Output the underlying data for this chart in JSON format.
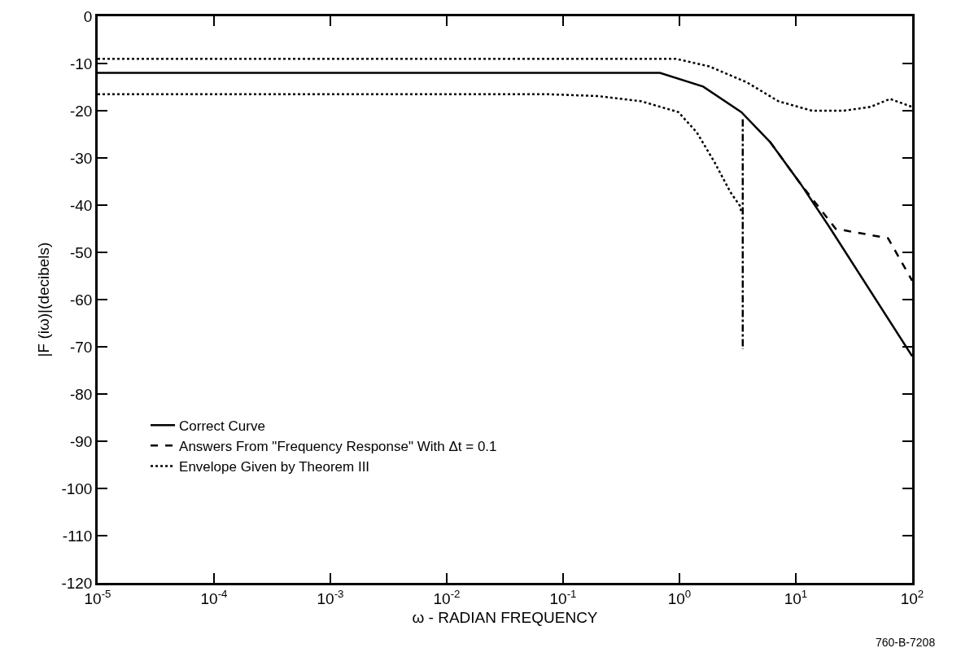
{
  "chart_data": {
    "type": "line",
    "xlabel": "ω - RADIAN FREQUENCY",
    "ylabel": "|F (iω)|(decibels)",
    "log": "x",
    "grid": false,
    "legend": "bottom left",
    "marker": "none",
    "xlim": [
      1e-05,
      100
    ],
    "xticks": [
      {
        "value": 1e-05,
        "label": "10$^{-5}$"
      },
      {
        "value": 0.0001,
        "label": "10$^{-4}$"
      },
      {
        "value": 0.001,
        "label": "10$^{-3}$"
      },
      {
        "value": 0.01,
        "label": "10$^{-2}$"
      },
      {
        "value": 0.1,
        "label": "10$^{-1}$"
      },
      {
        "value": 1,
        "label": "10$^{0}$"
      },
      {
        "value": 10,
        "label": "10$^{1}$"
      },
      {
        "value": 100,
        "label": "10$^{2}$"
      }
    ],
    "ylim": [
      -120,
      0
    ],
    "yticks": [
      0,
      -10,
      -20,
      -30,
      -40,
      -50,
      -60,
      -70,
      -80,
      -90,
      -100,
      -110,
      -120
    ],
    "annotations": [
      "760-B-7208"
    ],
    "series": [
      {
        "name": "Correct Curve",
        "color": "#000000",
        "line_style": "solid",
        "x": [
          1e-05,
          0.68,
          1.6,
          3.4,
          6.0,
          11,
          19.5,
          100
        ],
        "values": [
          -12,
          -12,
          -14.9,
          -20.3,
          -26.6,
          -35.5,
          -44.7,
          -72
        ]
      },
      {
        "name": "Answers From \"Frequency Response\" With Δt = 0.1",
        "color": "#000000",
        "line_style": "dashed",
        "x": [
          6.0,
          11,
          22,
          62,
          100
        ],
        "values": [
          -26.6,
          -35.5,
          -45,
          -47,
          -56
        ]
      },
      {
        "name": "Envelope Given by Theorem III",
        "color": "#000000",
        "line_style": "dotted",
        "x": [
          1e-05,
          0.93,
          1.8,
          3.8,
          7.1,
          13.8,
          25.7,
          43.7,
          64.6,
          100
        ],
        "values": [
          -9,
          -9,
          -10.6,
          -14,
          -18,
          -20,
          -20,
          -19.2,
          -17.5,
          -19.2
        ]
      },
      {
        "color": "#000000",
        "line_style": "dotted",
        "x": [
          1e-05,
          0.072,
          0.2,
          0.47,
          0.98,
          1.41,
          2.0,
          2.75,
          3.3,
          3.43
        ],
        "values": [
          -16.5,
          -16.5,
          -16.9,
          -18,
          -20.3,
          -24.6,
          -30.9,
          -37.3,
          -40.1,
          -41.8
        ]
      },
      {
        "color": "#000000",
        "line_style": "dashdot",
        "x": [
          3.5,
          3.5
        ],
        "values": [
          -21.8,
          -70.5
        ]
      }
    ]
  }
}
